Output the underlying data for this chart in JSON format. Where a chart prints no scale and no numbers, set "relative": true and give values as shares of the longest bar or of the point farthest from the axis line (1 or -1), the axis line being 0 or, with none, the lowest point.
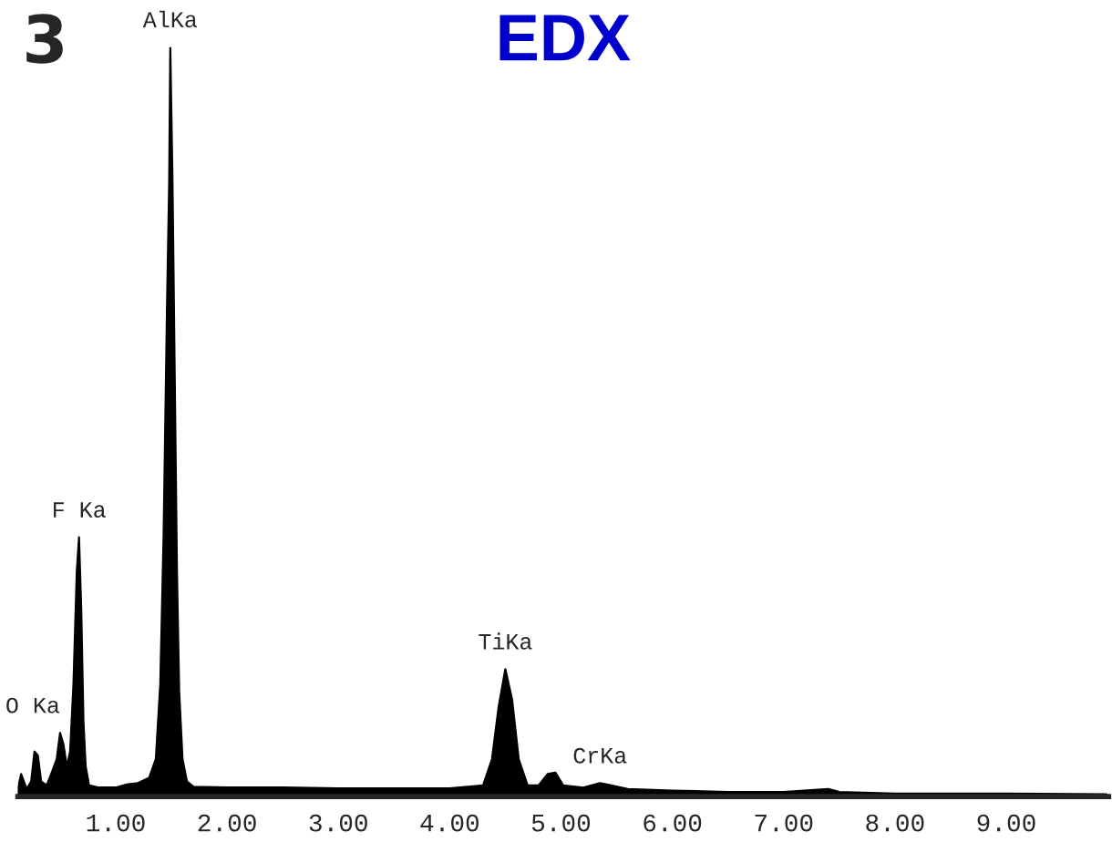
{
  "chart_data": {
    "type": "area",
    "title": "EDX",
    "relative": true,
    "x": [
      0.12,
      0.15,
      0.2,
      0.24,
      0.27,
      0.3,
      0.33,
      0.38,
      0.42,
      0.47,
      0.5,
      0.53,
      0.56,
      0.59,
      0.62,
      0.65,
      0.67,
      0.69,
      0.71,
      0.73,
      0.76,
      0.85,
      1.0,
      1.1,
      1.2,
      1.3,
      1.36,
      1.4,
      1.43,
      1.46,
      1.48,
      1.49,
      1.51,
      1.53,
      1.55,
      1.57,
      1.6,
      1.64,
      1.7,
      2.0,
      2.5,
      3.0,
      3.5,
      4.0,
      4.3,
      4.38,
      4.44,
      4.5,
      4.56,
      4.62,
      4.7,
      4.8,
      4.88,
      4.95,
      5.02,
      5.2,
      5.35,
      5.45,
      5.6,
      6.0,
      6.5,
      7.0,
      7.4,
      7.5,
      8.0,
      9.0,
      9.9
    ],
    "series": [
      {
        "color": "#000000",
        "values": [
          0.01,
          0.03,
          0.01,
          0.02,
          0.06,
          0.055,
          0.02,
          0.015,
          0.03,
          0.05,
          0.085,
          0.07,
          0.04,
          0.06,
          0.15,
          0.3,
          0.346,
          0.25,
          0.1,
          0.04,
          0.015,
          0.012,
          0.012,
          0.016,
          0.018,
          0.025,
          0.05,
          0.15,
          0.35,
          0.65,
          0.82,
          1.0,
          0.82,
          0.56,
          0.3,
          0.14,
          0.05,
          0.02,
          0.013,
          0.012,
          0.012,
          0.011,
          0.011,
          0.011,
          0.015,
          0.05,
          0.12,
          0.17,
          0.13,
          0.05,
          0.015,
          0.015,
          0.03,
          0.032,
          0.015,
          0.012,
          0.018,
          0.015,
          0.01,
          0.008,
          0.006,
          0.006,
          0.01,
          0.006,
          0.004,
          0.004,
          0.003
        ]
      }
    ],
    "xlim": [
      0.12,
      9.92
    ],
    "xticks": [
      {
        "value": 1,
        "label": "1.00"
      },
      {
        "value": 2,
        "label": "2.00"
      },
      {
        "value": 3,
        "label": "3.00"
      },
      {
        "value": 4,
        "label": "4.00"
      },
      {
        "value": 5,
        "label": "5.00"
      },
      {
        "value": 6,
        "label": "6.00"
      },
      {
        "value": 7,
        "label": "7.00"
      },
      {
        "value": 8,
        "label": "8.00"
      },
      {
        "value": 9,
        "label": "9.00"
      }
    ],
    "annotations": [
      "3",
      {
        "text": "O Ka",
        "x": 0.5,
        "y": 0.085
      },
      {
        "text": "F Ka",
        "x": 0.67,
        "y": 0.346
      },
      {
        "text": "AlKa",
        "x": 1.49,
        "y": 1.0
      },
      {
        "text": "TiKa",
        "x": 4.5,
        "y": 0.17
      },
      {
        "text": "CrKa",
        "x": 5.35,
        "y": 0.018
      }
    ],
    "grid": false,
    "legend": false
  }
}
